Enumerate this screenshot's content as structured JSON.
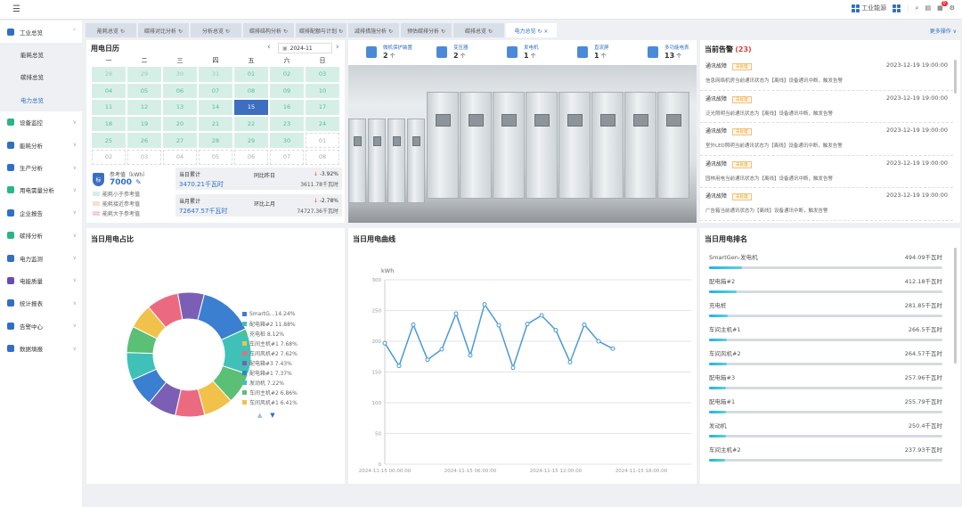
{
  "topbar": {
    "menu_icon": "menu-fold-icon",
    "workspace_label": "工业能源",
    "notification_count": "0"
  },
  "sidebar": {
    "items": [
      {
        "label": "工业总览",
        "expanded": true,
        "color": "#2f6fc6",
        "children": [
          {
            "label": "能耗总览"
          },
          {
            "label": "碳排总览"
          },
          {
            "label": "电力总览",
            "active": true
          }
        ]
      },
      {
        "label": "设备监控",
        "color": "#2bb48a"
      },
      {
        "label": "能耗分析",
        "color": "#2f6fc6"
      },
      {
        "label": "生产分析",
        "color": "#2f6fc6"
      },
      {
        "label": "用电需量分析",
        "color": "#2bb48a"
      },
      {
        "label": "企业报告",
        "color": "#2f6fc6"
      },
      {
        "label": "碳排分析",
        "color": "#2bb48a"
      },
      {
        "label": "电力监测",
        "color": "#2f6fc6"
      },
      {
        "label": "电能质量",
        "color": "#6a4bb5"
      },
      {
        "label": "统计报表",
        "color": "#2f6fc6"
      },
      {
        "label": "告警中心",
        "color": "#2f6fc6"
      },
      {
        "label": "数据填报",
        "color": "#2f6fc6"
      }
    ]
  },
  "tabs": [
    {
      "label": "能耗总览 ↻"
    },
    {
      "label": "碳排对比分析 ↻"
    },
    {
      "label": "分析总览 ↻"
    },
    {
      "label": "碳排结构分析 ↻"
    },
    {
      "label": "碳排配额与计划 ↻"
    },
    {
      "label": "减排措施分析 ↻"
    },
    {
      "label": "预估碳排分析 ↻"
    },
    {
      "label": "碳排总览 ↻"
    },
    {
      "label": "电力总览 ↻ ×",
      "active": true
    }
  ],
  "more_actions": "更多操作 ∨",
  "calendar": {
    "title": "用电日历",
    "month": "2024-11",
    "weekdays": [
      "一",
      "二",
      "三",
      "四",
      "五",
      "六",
      "日"
    ],
    "days": [
      [
        "28",
        "prev"
      ],
      [
        "29",
        "prev"
      ],
      [
        "30",
        "prev"
      ],
      [
        "31",
        "prev"
      ],
      [
        "01",
        ""
      ],
      [
        "02",
        ""
      ],
      [
        "03",
        ""
      ],
      [
        "04",
        ""
      ],
      [
        "05",
        ""
      ],
      [
        "06",
        ""
      ],
      [
        "07",
        ""
      ],
      [
        "08",
        ""
      ],
      [
        "09",
        ""
      ],
      [
        "10",
        ""
      ],
      [
        "11",
        ""
      ],
      [
        "12",
        ""
      ],
      [
        "13",
        ""
      ],
      [
        "14",
        ""
      ],
      [
        "15",
        "sel"
      ],
      [
        "16",
        ""
      ],
      [
        "17",
        ""
      ],
      [
        "18",
        ""
      ],
      [
        "19",
        ""
      ],
      [
        "20",
        ""
      ],
      [
        "21",
        ""
      ],
      [
        "22",
        ""
      ],
      [
        "23",
        ""
      ],
      [
        "24",
        ""
      ],
      [
        "25",
        ""
      ],
      [
        "26",
        ""
      ],
      [
        "27",
        ""
      ],
      [
        "28",
        ""
      ],
      [
        "29",
        ""
      ],
      [
        "30",
        ""
      ],
      [
        "01",
        "other"
      ],
      [
        "02",
        "other"
      ],
      [
        "03",
        "other"
      ],
      [
        "04",
        "other"
      ],
      [
        "05",
        "other"
      ],
      [
        "06",
        "other"
      ],
      [
        "07",
        "other"
      ],
      [
        "08",
        "other"
      ]
    ],
    "ref_label": "参考值（kWh）",
    "ref_value": "7000",
    "ref_badge": "标",
    "legend": [
      {
        "label": "能耗小于参考值",
        "color": "#d6efe6"
      },
      {
        "label": "能耗接近参考值",
        "color": "#f7dfcf"
      },
      {
        "label": "能耗大于参考值",
        "color": "#f8cfd3"
      }
    ],
    "day": {
      "label": "当日累计",
      "value": "3470.21千瓦时",
      "cmp_label": "同比昨日",
      "change": "-3.92%",
      "prev": "3611.78千瓦时"
    },
    "month_stat": {
      "label": "当月累计",
      "value": "72647.57千瓦时",
      "cmp_label": "环比上月",
      "change": "-2.78%",
      "prev": "74727.36千瓦时"
    }
  },
  "devices": [
    {
      "label": "微机保护装置",
      "count": "2",
      "unit": "个"
    },
    {
      "label": "变压器",
      "count": "2",
      "unit": "个"
    },
    {
      "label": "发电机",
      "count": "1",
      "unit": "个"
    },
    {
      "label": "直流屏",
      "count": "1",
      "unit": "个"
    },
    {
      "label": "多功能电表",
      "count": "13",
      "unit": "个"
    }
  ],
  "alarms": {
    "title": "当前告警",
    "count": "(23)",
    "items": [
      {
        "type": "通讯故障",
        "tag": "未处理",
        "time": "2023-12-19 19:00:00",
        "desc": "信息网络机房当前通讯状态为【离线】设备通讯中断，触发告警"
      },
      {
        "type": "通讯故障",
        "tag": "未处理",
        "time": "2023-12-19 19:00:00",
        "desc": "泛光照明当前通讯状态为【离线】设备通讯中断，触发告警"
      },
      {
        "type": "通讯故障",
        "tag": "未处理",
        "time": "2023-12-19 19:00:00",
        "desc": "室外LED照明当前通讯状态为【离线】设备通讯中断，触发告警"
      },
      {
        "type": "通讯故障",
        "tag": "未处理",
        "time": "2023-12-19 19:00:00",
        "desc": "园林用电当前通讯状态为【离线】设备通讯中断，触发告警"
      },
      {
        "type": "通讯故障",
        "tag": "未处理",
        "time": "2023-12-19 19:00:00",
        "desc": "广告箱当前通讯状态为【离线】设备通讯中断，触发告警"
      }
    ]
  },
  "pie_title": "当日用电占比",
  "line_title": "当日用电曲线",
  "rank": {
    "title": "当日用电排名",
    "items": [
      {
        "name": "SmartGen-发电机",
        "value": "494.09千瓦时",
        "fraction": 0.14
      },
      {
        "name": "配电箱#2",
        "value": "412.18千瓦时",
        "fraction": 0.12
      },
      {
        "name": "充电桩",
        "value": "281.85千瓦时",
        "fraction": 0.08
      },
      {
        "name": "车间主机#1",
        "value": "266.5千瓦时",
        "fraction": 0.077
      },
      {
        "name": "车间风机#2",
        "value": "264.57千瓦时",
        "fraction": 0.076
      },
      {
        "name": "配电箱#3",
        "value": "257.96千瓦时",
        "fraction": 0.074
      },
      {
        "name": "配电箱#1",
        "value": "255.79千瓦时",
        "fraction": 0.074
      },
      {
        "name": "发动机",
        "value": "250.4千瓦时",
        "fraction": 0.072
      },
      {
        "name": "车间主机#2",
        "value": "237.93千瓦时",
        "fraction": 0.069
      }
    ]
  },
  "chart_data": [
    {
      "type": "pie",
      "donut": true,
      "legend_position": "right",
      "series": [
        {
          "name": "SmartG...",
          "value": 14.24,
          "label": "SmartG...14.24%",
          "color": "#3a7fd0"
        },
        {
          "name": "配电箱#2",
          "value": 11.88,
          "label": "配电箱#2  11.88%",
          "color": "#3fc1b8"
        },
        {
          "name": "充电桩",
          "value": 8.12,
          "label": "充电桩  8.12%",
          "color": "#5bbf75"
        },
        {
          "name": "车间主机#1",
          "value": 7.68,
          "label": "车间主机#1  7.68%",
          "color": "#f1c24a"
        },
        {
          "name": "车间风机#2",
          "value": 7.62,
          "label": "车间风机#2  7.62%",
          "color": "#ec6a80"
        },
        {
          "name": "配电箱#3",
          "value": 7.43,
          "label": "配电箱#3  7.43%",
          "color": "#7b5fb5"
        },
        {
          "name": "配电箱#1",
          "value": 7.37,
          "label": "配电箱#1  7.37%",
          "color": "#3a7fd0"
        },
        {
          "name": "发动机",
          "value": 7.22,
          "label": "发动机  7.22%",
          "color": "#3fc1b8"
        },
        {
          "name": "车间主机#2",
          "value": 6.86,
          "label": "车间主机#2  6.86%",
          "color": "#5bbf75"
        },
        {
          "name": "车间风机#1",
          "value": 6.41,
          "label": "车间风机#1  6.41%",
          "color": "#f1c24a"
        }
      ]
    },
    {
      "type": "line",
      "ylabel": "kWh",
      "ylim": [
        0,
        300
      ],
      "yticks": [
        "0",
        "50",
        "100",
        "150",
        "200",
        "250",
        "300"
      ],
      "xticks": [
        "2024-11-15 00:00:00",
        "2024-11-15 06:00:00",
        "2024-11-15 12:00:00",
        "2024-11-15 18:00:00"
      ],
      "x_hours": [
        0,
        1,
        2,
        3,
        4,
        5,
        6,
        7,
        8,
        9,
        10,
        11,
        12,
        13,
        14,
        15,
        16
      ],
      "values": [
        197,
        160,
        227,
        170,
        187,
        245,
        177,
        260,
        226,
        157,
        228,
        242,
        218,
        166,
        227,
        200,
        188
      ],
      "color": "#4a9ad8",
      "grid": true
    }
  ]
}
